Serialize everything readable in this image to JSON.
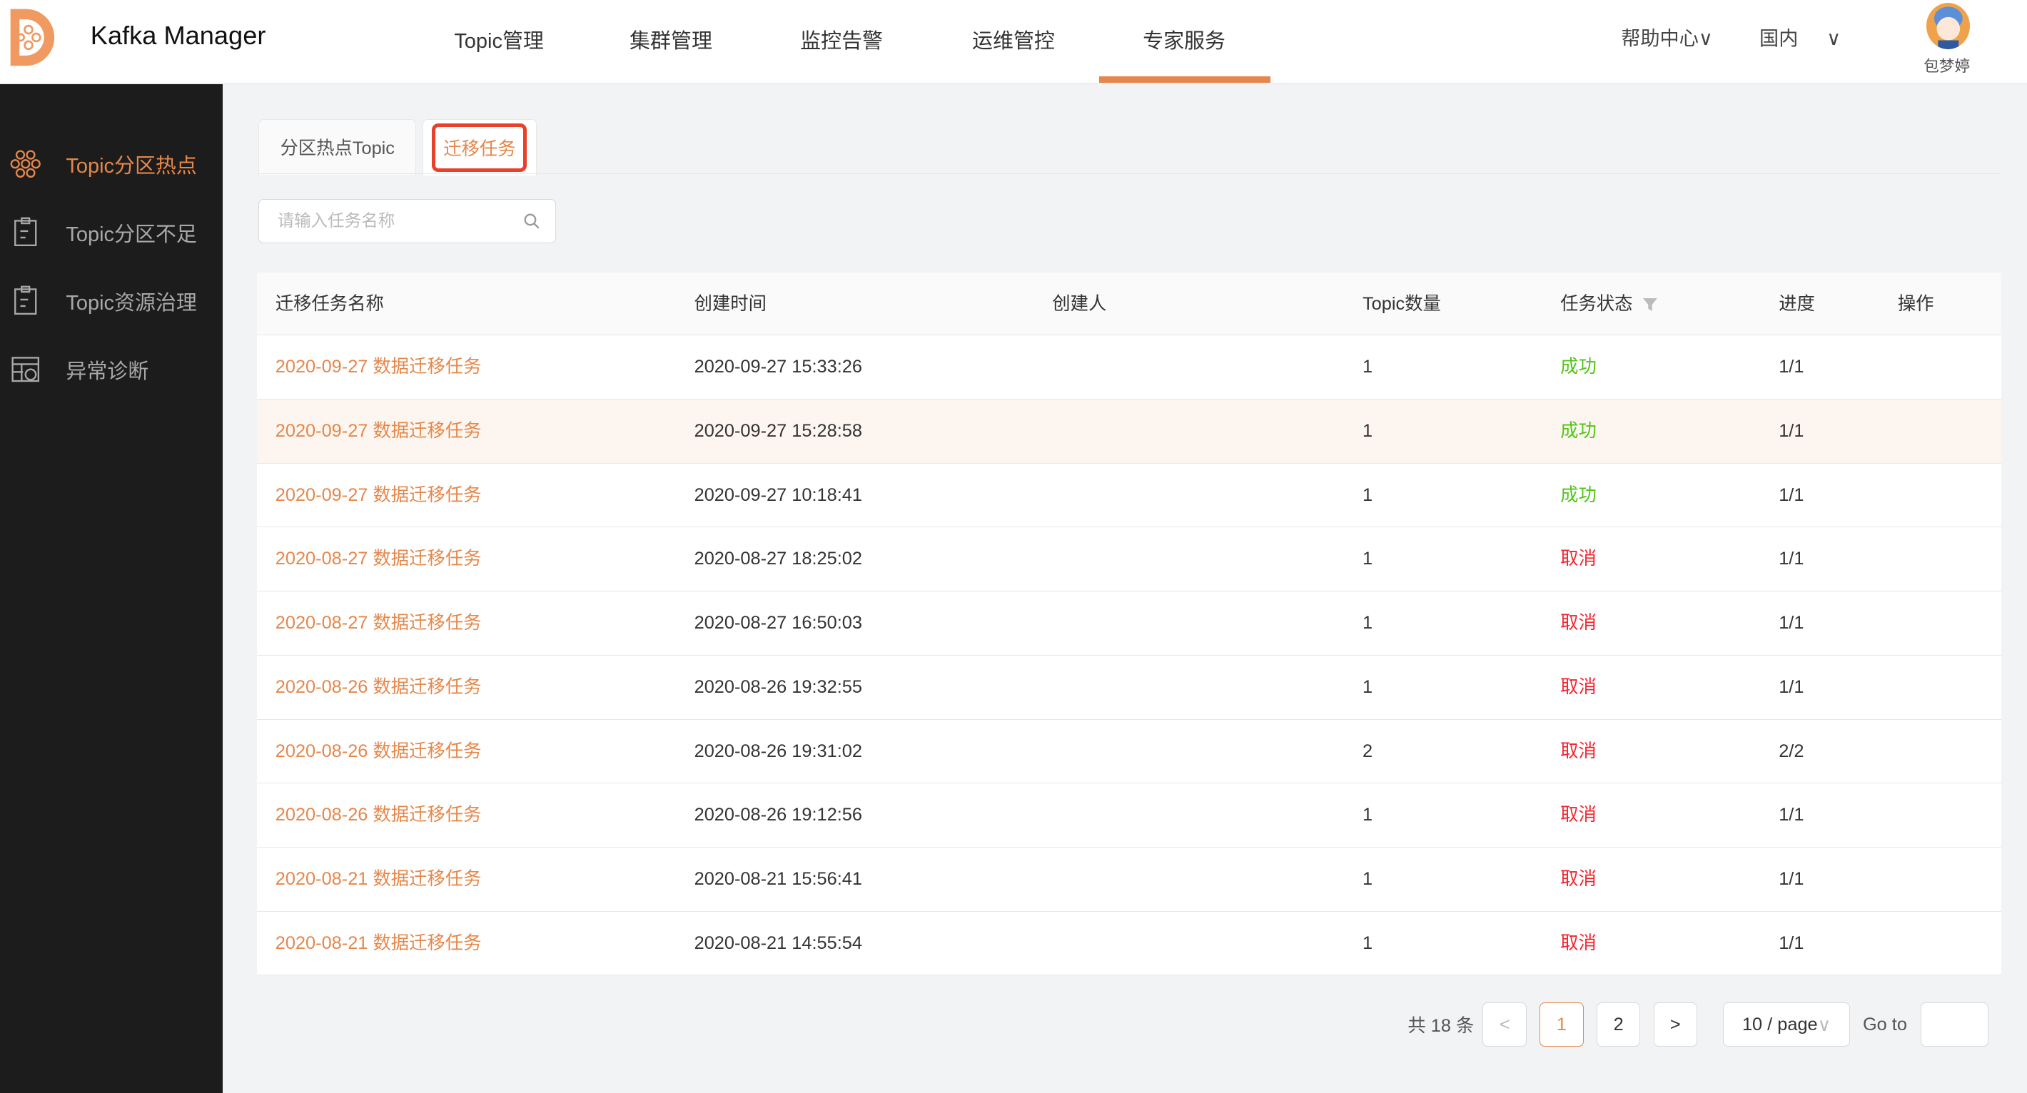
{
  "app": {
    "title": "Kafka Manager"
  },
  "nav": [
    {
      "label": "Topic管理"
    },
    {
      "label": "集群管理"
    },
    {
      "label": "监控告警"
    },
    {
      "label": "运维管控"
    },
    {
      "label": "专家服务",
      "active": true
    }
  ],
  "header_right": {
    "help": "帮助中心",
    "region": "国内",
    "chevron": "∨",
    "user_name": "包梦婷"
  },
  "colors": {
    "accent": "#e5874a",
    "success": "#52c41a",
    "danger": "#f5222d",
    "sidebar": "#1c1c1c"
  },
  "sidebar": {
    "items": [
      {
        "label": "Topic分区热点",
        "icon": "honeycomb-icon",
        "active": true
      },
      {
        "label": "Topic分区不足",
        "icon": "clipboard-icon"
      },
      {
        "label": "Topic资源治理",
        "icon": "clipboard-icon"
      },
      {
        "label": "异常诊断",
        "icon": "table-clock-icon"
      }
    ]
  },
  "tabs": [
    {
      "label": "分区热点Topic"
    },
    {
      "label": "迁移任务",
      "active": true
    }
  ],
  "search": {
    "placeholder": "请输入任务名称",
    "value": ""
  },
  "table": {
    "columns": [
      "迁移任务名称",
      "创建时间",
      "创建人",
      "Topic数量",
      "任务状态",
      "进度",
      "操作"
    ],
    "rows": [
      {
        "name": "2020-09-27 数据迁移任务",
        "time": "2020-09-27 15:33:26",
        "creator": "",
        "count": "1",
        "status": "成功",
        "progress": "1/1"
      },
      {
        "name": "2020-09-27 数据迁移任务",
        "time": "2020-09-27 15:28:58",
        "creator": "",
        "count": "1",
        "status": "成功",
        "progress": "1/1"
      },
      {
        "name": "2020-09-27 数据迁移任务",
        "time": "2020-09-27 10:18:41",
        "creator": "",
        "count": "1",
        "status": "成功",
        "progress": "1/1"
      },
      {
        "name": "2020-08-27 数据迁移任务",
        "time": "2020-08-27 18:25:02",
        "creator": "",
        "count": "1",
        "status": "取消",
        "progress": "1/1"
      },
      {
        "name": "2020-08-27 数据迁移任务",
        "time": "2020-08-27 16:50:03",
        "creator": "",
        "count": "1",
        "status": "取消",
        "progress": "1/1"
      },
      {
        "name": "2020-08-26 数据迁移任务",
        "time": "2020-08-26 19:32:55",
        "creator": "",
        "count": "1",
        "status": "取消",
        "progress": "1/1"
      },
      {
        "name": "2020-08-26 数据迁移任务",
        "time": "2020-08-26 19:31:02",
        "creator": "",
        "count": "2",
        "status": "取消",
        "progress": "2/2"
      },
      {
        "name": "2020-08-26 数据迁移任务",
        "time": "2020-08-26 19:12:56",
        "creator": "",
        "count": "1",
        "status": "取消",
        "progress": "1/1"
      },
      {
        "name": "2020-08-21 数据迁移任务",
        "time": "2020-08-21 15:56:41",
        "creator": "",
        "count": "1",
        "status": "取消",
        "progress": "1/1"
      },
      {
        "name": "2020-08-21 数据迁移任务",
        "time": "2020-08-21 14:55:54",
        "creator": "",
        "count": "1",
        "status": "取消",
        "progress": "1/1"
      }
    ]
  },
  "pagination": {
    "total": "共 18 条",
    "prev": "<",
    "pages": [
      "1",
      "2"
    ],
    "current": "1",
    "next": ">",
    "page_size": "10 / page",
    "goto": "Go to",
    "goto_value": ""
  }
}
